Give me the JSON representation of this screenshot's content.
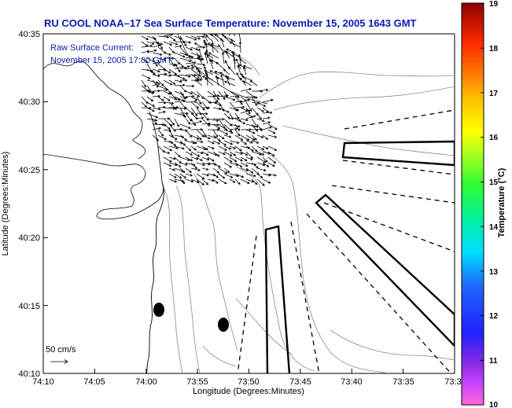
{
  "title": "RU COOL  NOAA–17  Sea Surface Temperature:  November 15, 2005 1643 GMT",
  "overlay": {
    "current_label": "Raw Surface Current:",
    "current_time": "November 15, 2005 17:00 GMT",
    "scale_label": "50 cm/s"
  },
  "axes": {
    "xlabel": "Longitude (Degrees:Minutes)",
    "ylabel": "Latitude (Degrees:Minutes)",
    "xticks": [
      "74:10",
      "74:05",
      "74:00",
      "73:55",
      "73:50",
      "73:45",
      "73:40",
      "73:35",
      "73:3"
    ],
    "yticks": [
      "40:35",
      "40:30",
      "40:25",
      "40:20",
      "40:15",
      "40:10"
    ]
  },
  "colorbar": {
    "label": "Temperature (°C)",
    "ticks": [
      "19",
      "18",
      "17",
      "16",
      "15",
      "14",
      "13",
      "12",
      "11",
      "10"
    ]
  },
  "colors": {
    "title": "#0a1ab0",
    "overlay_text": "#0a1ab0"
  }
}
